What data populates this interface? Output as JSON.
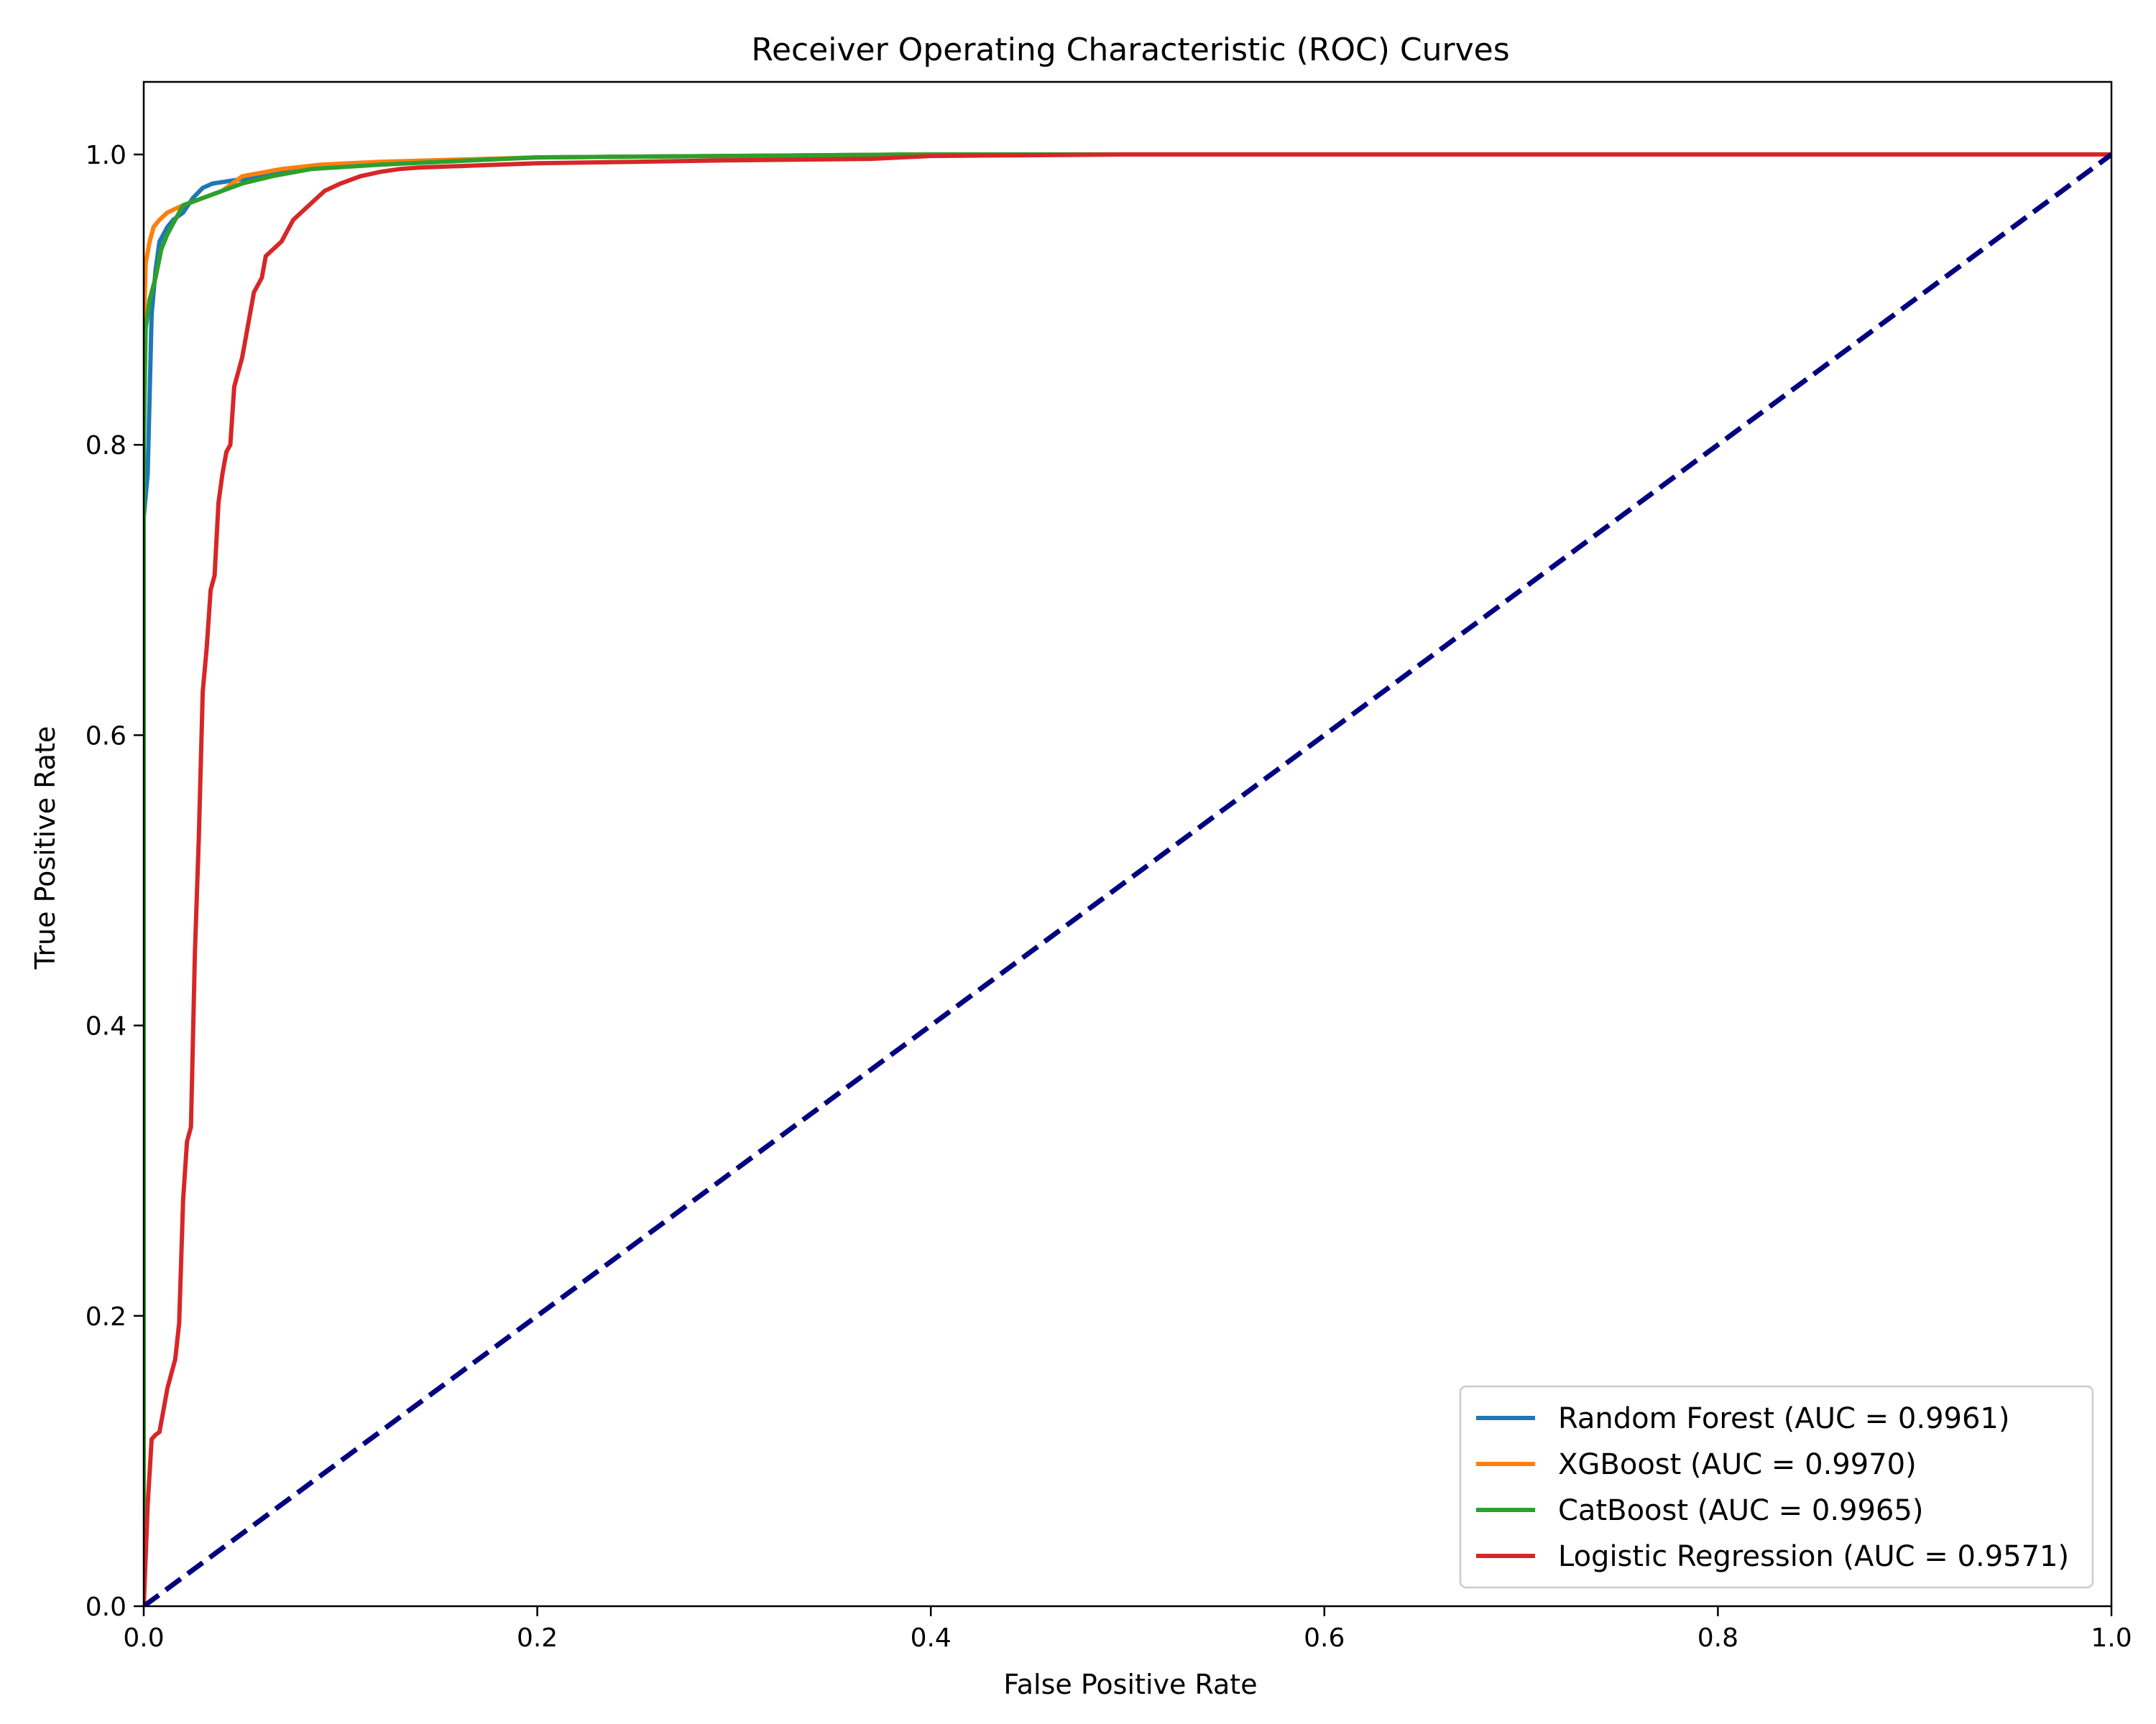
{
  "chart_data": {
    "type": "line",
    "title": "Receiver Operating Characteristic (ROC) Curves",
    "xlabel": "False Positive Rate",
    "ylabel": "True Positive Rate",
    "xlim": [
      0.0,
      1.0
    ],
    "ylim": [
      0.0,
      1.05
    ],
    "xticks": [
      "0.0",
      "0.2",
      "0.4",
      "0.6",
      "0.8",
      "1.0"
    ],
    "yticks": [
      "0.0",
      "0.2",
      "0.4",
      "0.6",
      "0.8",
      "1.0"
    ],
    "grid": false,
    "legend_position": "lower-right",
    "series": [
      {
        "name": "Random Forest (AUC = 0.9961)",
        "color": "#1f77b4",
        "x": [
          0.0,
          0.0,
          0.002,
          0.004,
          0.006,
          0.008,
          0.012,
          0.015,
          0.02,
          0.025,
          0.03,
          0.035,
          0.045,
          0.06,
          0.08,
          0.12,
          0.2,
          0.4,
          1.0
        ],
        "y": [
          0.0,
          0.75,
          0.78,
          0.89,
          0.92,
          0.94,
          0.95,
          0.955,
          0.96,
          0.97,
          0.977,
          0.98,
          0.982,
          0.985,
          0.99,
          0.994,
          0.998,
          1.0,
          1.0
        ]
      },
      {
        "name": "XGBoost (AUC = 0.9970)",
        "color": "#ff7f0e",
        "x": [
          0.0,
          0.0,
          0.001,
          0.003,
          0.005,
          0.008,
          0.012,
          0.02,
          0.03,
          0.04,
          0.05,
          0.07,
          0.09,
          0.12,
          0.2,
          0.4,
          1.0
        ],
        "y": [
          0.0,
          0.88,
          0.925,
          0.94,
          0.95,
          0.955,
          0.96,
          0.965,
          0.97,
          0.975,
          0.985,
          0.99,
          0.993,
          0.995,
          0.998,
          1.0,
          1.0
        ]
      },
      {
        "name": "CatBoost (AUC = 0.9965)",
        "color": "#2ca02c",
        "x": [
          0.0,
          0.0,
          0.001,
          0.003,
          0.006,
          0.009,
          0.012,
          0.016,
          0.02,
          0.03,
          0.04,
          0.05,
          0.065,
          0.085,
          0.12,
          0.2,
          0.4,
          1.0
        ],
        "y": [
          0.0,
          0.8,
          0.88,
          0.9,
          0.915,
          0.935,
          0.945,
          0.955,
          0.965,
          0.97,
          0.975,
          0.98,
          0.985,
          0.99,
          0.993,
          0.998,
          1.0,
          1.0
        ]
      },
      {
        "name": "Logistic Regression (AUC = 0.9571)",
        "color": "#d62728",
        "x": [
          0.0,
          0.002,
          0.004,
          0.006,
          0.008,
          0.012,
          0.014,
          0.016,
          0.018,
          0.02,
          0.022,
          0.024,
          0.026,
          0.028,
          0.03,
          0.032,
          0.034,
          0.036,
          0.038,
          0.04,
          0.042,
          0.044,
          0.046,
          0.048,
          0.05,
          0.052,
          0.056,
          0.06,
          0.062,
          0.066,
          0.07,
          0.074,
          0.076,
          0.08,
          0.084,
          0.088,
          0.092,
          0.1,
          0.11,
          0.12,
          0.13,
          0.14,
          0.16,
          0.18,
          0.2,
          0.25,
          0.3,
          0.37,
          0.4,
          0.5,
          0.7,
          0.95,
          1.0
        ],
        "y": [
          0.0,
          0.07,
          0.115,
          0.118,
          0.12,
          0.15,
          0.16,
          0.17,
          0.195,
          0.28,
          0.32,
          0.33,
          0.45,
          0.53,
          0.63,
          0.66,
          0.7,
          0.71,
          0.76,
          0.78,
          0.795,
          0.8,
          0.84,
          0.85,
          0.86,
          0.875,
          0.905,
          0.915,
          0.93,
          0.935,
          0.94,
          0.95,
          0.955,
          0.96,
          0.965,
          0.97,
          0.975,
          0.98,
          0.985,
          0.988,
          0.99,
          0.991,
          0.992,
          0.993,
          0.994,
          0.995,
          0.996,
          0.997,
          0.999,
          1.0,
          1.0,
          1.0,
          1.0
        ]
      },
      {
        "name": "",
        "color": "#000080",
        "dashed": true,
        "x": [
          0.0,
          1.0
        ],
        "y": [
          0.0,
          1.0
        ]
      }
    ]
  }
}
